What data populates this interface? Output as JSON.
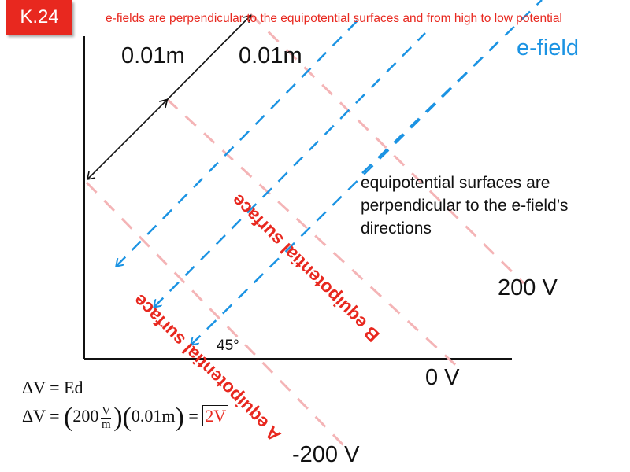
{
  "badge": "K.24",
  "efield_note": "e-fields are perpendicular to the equipotential surfaces and from high to low potential",
  "distance_labels": [
    "0.01m",
    "0.01m"
  ],
  "efield_label": "e-field",
  "equipotential_note": "equipotential surfaces are perpendicular to the e-field’s directions",
  "surface_a_label": "A equipotential surface",
  "surface_b_label": "B equipotential surface",
  "potential_labels": [
    "200 V",
    "0 V",
    "-200 V"
  ],
  "angle_label": "45°",
  "formula": {
    "line1": "ΔV = Ed",
    "lhs": "ΔV =",
    "paren_open": "(",
    "paren_close": ")",
    "value": "200",
    "unit_num": "V",
    "unit_den": "m",
    "distance": "0.01m",
    "equals": "=",
    "result": "2V"
  },
  "colors": {
    "accent": "#e8281f",
    "efield": "#1b93e3",
    "equipotential": "#f4b4b6"
  }
}
